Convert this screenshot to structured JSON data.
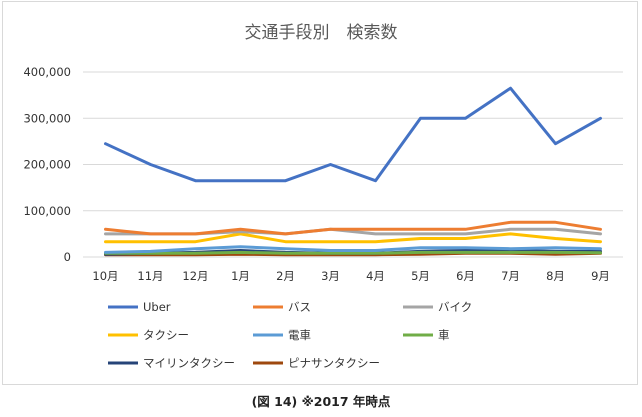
{
  "caption": "(図 14) ※2017 年時点",
  "chart_data": {
    "type": "line",
    "title": "交通手段別　検索数",
    "xlabel": "",
    "ylabel": "",
    "categories": [
      "10月",
      "11月",
      "12月",
      "1月",
      "2月",
      "3月",
      "4月",
      "5月",
      "6月",
      "7月",
      "8月",
      "9月"
    ],
    "ylim": [
      0,
      400000
    ],
    "yticks": [
      0,
      100000,
      200000,
      300000,
      400000
    ],
    "ytick_labels": [
      "0",
      "100,000",
      "200,000",
      "300,000",
      "400,000"
    ],
    "grid": true,
    "legend_position": "bottom",
    "series": [
      {
        "name": "Uber",
        "color": "#4472c4",
        "values": [
          245000,
          200000,
          165000,
          165000,
          165000,
          200000,
          165000,
          300000,
          300000,
          365000,
          245000,
          300000
        ]
      },
      {
        "name": "バス",
        "color": "#ed7d31",
        "values": [
          60000,
          50000,
          50000,
          60000,
          50000,
          60000,
          60000,
          60000,
          60000,
          75000,
          75000,
          60000
        ]
      },
      {
        "name": "バイク",
        "color": "#a5a5a5",
        "values": [
          50000,
          50000,
          50000,
          55000,
          50000,
          60000,
          50000,
          50000,
          50000,
          60000,
          60000,
          50000
        ]
      },
      {
        "name": "タクシー",
        "color": "#ffc000",
        "values": [
          33000,
          33000,
          33000,
          50000,
          33000,
          33000,
          33000,
          40000,
          40000,
          50000,
          40000,
          33000
        ]
      },
      {
        "name": "電車",
        "color": "#5b9bd5",
        "values": [
          10000,
          12000,
          18000,
          22000,
          18000,
          14000,
          14000,
          20000,
          20000,
          18000,
          20000,
          18000
        ]
      },
      {
        "name": "車",
        "color": "#70ad47",
        "values": [
          8000,
          8000,
          8000,
          10000,
          8000,
          8000,
          8000,
          10000,
          10000,
          10000,
          10000,
          9000
        ]
      },
      {
        "name": "マイリンタクシー",
        "color": "#264478",
        "values": [
          6000,
          8000,
          10000,
          14000,
          10000,
          8000,
          8000,
          12000,
          14000,
          14000,
          12000,
          12000
        ]
      },
      {
        "name": "ピナサンタクシー",
        "color": "#9e480e",
        "values": [
          5000,
          5000,
          5000,
          6000,
          5000,
          5000,
          5000,
          6000,
          8000,
          8000,
          6000,
          8000
        ]
      }
    ]
  }
}
